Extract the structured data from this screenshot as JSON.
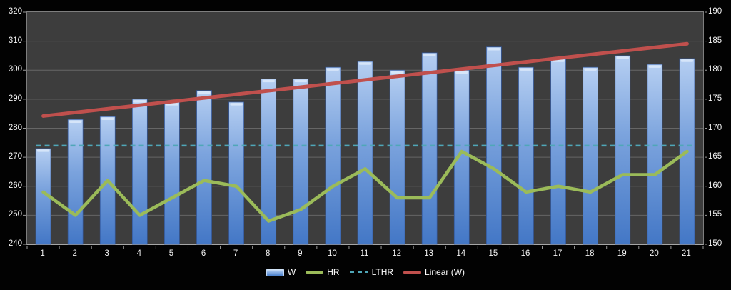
{
  "chart_data": {
    "type": "bar",
    "subtype": "combo-bar-line",
    "title": "",
    "categories": [
      "1",
      "2",
      "3",
      "4",
      "5",
      "6",
      "7",
      "8",
      "9",
      "10",
      "11",
      "12",
      "13",
      "14",
      "15",
      "16",
      "17",
      "18",
      "19",
      "20",
      "21"
    ],
    "series": [
      {
        "name": "W",
        "type": "bar",
        "axis": "left",
        "values": [
          273,
          283,
          284,
          290,
          289,
          293,
          289,
          297,
          297,
          301,
          303,
          300,
          306,
          300,
          308,
          301,
          304,
          301,
          305,
          302,
          304
        ]
      },
      {
        "name": "HR",
        "type": "line",
        "axis": "right",
        "values": [
          159,
          155,
          161,
          155,
          158,
          161,
          160,
          154,
          156,
          160,
          163,
          158,
          158,
          166,
          163,
          159,
          160,
          159,
          162,
          162,
          166
        ]
      },
      {
        "name": "LTHR",
        "type": "dashed-line",
        "axis": "right",
        "constant": 167
      },
      {
        "name": "Linear (W)",
        "type": "trendline",
        "axis": "left",
        "start": 284.2,
        "end": 309.1
      }
    ],
    "left_axis": {
      "min": 240,
      "max": 320,
      "step": 10,
      "ticks": [
        "240",
        "250",
        "260",
        "270",
        "280",
        "290",
        "300",
        "310",
        "320"
      ]
    },
    "right_axis": {
      "min": 150,
      "max": 190,
      "step": 5,
      "ticks": [
        "150",
        "155",
        "160",
        "165",
        "170",
        "175",
        "180",
        "185",
        "190"
      ]
    },
    "grid": true,
    "legend_position": "bottom"
  },
  "legend": {
    "items": [
      {
        "label": "W",
        "swatch": "bar"
      },
      {
        "label": "HR",
        "swatch": "line"
      },
      {
        "label": "LTHR",
        "swatch": "dash"
      },
      {
        "label": "Linear (W)",
        "swatch": "trend"
      }
    ]
  },
  "colors": {
    "page_bg": "#020202",
    "plot_bg": "#3d3d3d",
    "gridline": "#666666",
    "axis_tick": "#9a9a9a",
    "text": "#f4f4f4",
    "bar_top": "#b6cff2",
    "bar_mid": "#7ba3dd",
    "bar_bottom": "#4377c6",
    "bar_stroke": "#34589b",
    "bar_cap": "#d9e8fa",
    "hr_line": "#9bbb59",
    "lthr_line": "#4fa7b8",
    "trend_line": "#c0504d"
  }
}
